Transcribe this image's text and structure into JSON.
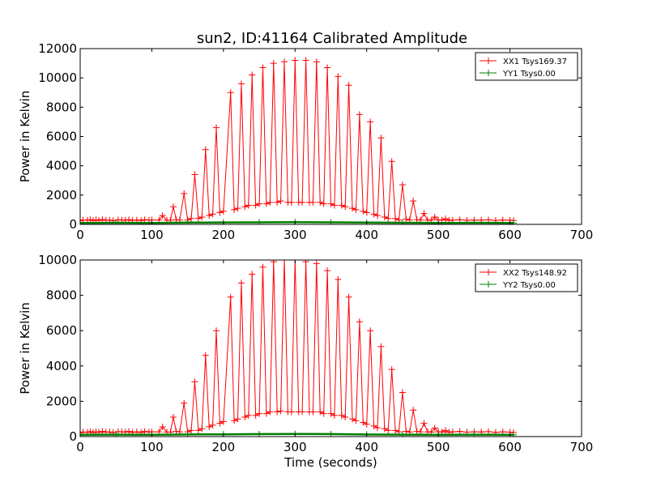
{
  "figure": {
    "title": "sun2, ID:41164 Calibrated Amplitude"
  },
  "chart_data": [
    {
      "type": "line",
      "title": "sun2, ID:41164 Calibrated Amplitude",
      "xlabel": "",
      "ylabel": "Power in Kelvin",
      "xlim": [
        0,
        700
      ],
      "ylim": [
        0,
        12000
      ],
      "xticks": [
        "0",
        "100",
        "200",
        "300",
        "400",
        "500",
        "600",
        "700"
      ],
      "yticks": [
        "0",
        "2000",
        "4000",
        "6000",
        "8000",
        "10000",
        "12000"
      ],
      "grid": false,
      "legend_position": "top-right",
      "series": [
        {
          "name": "XX1 Tsys169.37",
          "color": "#ff0000",
          "marker": "plus",
          "x": [
            0,
            4,
            10,
            14,
            18,
            22,
            26,
            31,
            36,
            41,
            46,
            53,
            58,
            63,
            68,
            73,
            79,
            85,
            90,
            96,
            100,
            110,
            115,
            121,
            126,
            130,
            134,
            139,
            145,
            150,
            155,
            160,
            165,
            170,
            175,
            180,
            185,
            190,
            195,
            200,
            210,
            215,
            220,
            225,
            230,
            235,
            240,
            245,
            250,
            255,
            260,
            265,
            270,
            275,
            280,
            285,
            290,
            295,
            300,
            305,
            310,
            315,
            320,
            325,
            330,
            335,
            340,
            345,
            350,
            355,
            360,
            365,
            370,
            375,
            380,
            385,
            390,
            395,
            400,
            405,
            410,
            415,
            420,
            425,
            430,
            435,
            440,
            445,
            450,
            455,
            460,
            465,
            470,
            475,
            480,
            485,
            490,
            495,
            500,
            505,
            510,
            515,
            520,
            530,
            540,
            550,
            560,
            570,
            580,
            590,
            600,
            605
          ],
          "y": [
            250,
            300,
            280,
            320,
            260,
            310,
            270,
            330,
            280,
            290,
            260,
            310,
            300,
            280,
            320,
            270,
            300,
            260,
            320,
            290,
            300,
            300,
            600,
            290,
            280,
            1200,
            320,
            300,
            2100,
            300,
            400,
            3400,
            400,
            500,
            5100,
            600,
            700,
            6600,
            800,
            900,
            9000,
            1000,
            1100,
            9600,
            1200,
            1300,
            10200,
            1300,
            1400,
            10700,
            1400,
            1500,
            11000,
            1500,
            1600,
            11100,
            1500,
            1500,
            11200,
            1500,
            1500,
            11200,
            1500,
            1500,
            11100,
            1500,
            1400,
            10700,
            1400,
            1300,
            10100,
            1300,
            1200,
            9500,
            1100,
            1000,
            7500,
            900,
            800,
            7000,
            700,
            600,
            5900,
            500,
            400,
            4300,
            400,
            300,
            2700,
            350,
            300,
            1600,
            320,
            300,
            750,
            300,
            280,
            500,
            300,
            290,
            380,
            270,
            300,
            320,
            280,
            300,
            290,
            310,
            270,
            300,
            280,
            260
          ]
        },
        {
          "name": "YY1 Tsys0.00",
          "color": "#008000",
          "marker": "plus",
          "x": [
            0,
            50,
            100,
            150,
            200,
            250,
            300,
            350,
            400,
            450,
            500,
            550,
            605
          ],
          "y": [
            100,
            110,
            100,
            120,
            130,
            140,
            150,
            140,
            120,
            110,
            100,
            110,
            100
          ]
        }
      ]
    },
    {
      "type": "line",
      "title": "",
      "xlabel": "Time (seconds)",
      "ylabel": "Power in Kelvin",
      "xlim": [
        0,
        700
      ],
      "ylim": [
        0,
        10000
      ],
      "xticks": [
        "0",
        "100",
        "200",
        "300",
        "400",
        "500",
        "600",
        "700"
      ],
      "yticks": [
        "0",
        "2000",
        "4000",
        "6000",
        "8000",
        "10000"
      ],
      "grid": false,
      "legend_position": "top-right",
      "series": [
        {
          "name": "XX2 Tsys148.92",
          "color": "#ff0000",
          "marker": "plus",
          "x": [
            0,
            4,
            10,
            14,
            18,
            22,
            26,
            31,
            36,
            41,
            46,
            53,
            58,
            63,
            68,
            73,
            79,
            85,
            90,
            96,
            100,
            110,
            115,
            121,
            126,
            130,
            134,
            139,
            145,
            150,
            155,
            160,
            165,
            170,
            175,
            180,
            185,
            190,
            195,
            200,
            210,
            215,
            220,
            225,
            230,
            235,
            240,
            245,
            250,
            255,
            260,
            265,
            270,
            275,
            280,
            285,
            290,
            295,
            300,
            305,
            310,
            315,
            320,
            325,
            330,
            335,
            340,
            345,
            350,
            355,
            360,
            365,
            370,
            375,
            380,
            385,
            390,
            395,
            400,
            405,
            410,
            415,
            420,
            425,
            430,
            435,
            440,
            445,
            450,
            455,
            460,
            465,
            470,
            475,
            480,
            485,
            490,
            495,
            500,
            505,
            510,
            515,
            520,
            530,
            540,
            550,
            560,
            570,
            580,
            590,
            600,
            605
          ],
          "y": [
            220,
            260,
            240,
            280,
            230,
            270,
            240,
            290,
            250,
            260,
            230,
            280,
            270,
            250,
            290,
            240,
            270,
            230,
            290,
            260,
            270,
            270,
            550,
            260,
            250,
            1100,
            290,
            270,
            1900,
            270,
            350,
            3100,
            350,
            450,
            4600,
            550,
            650,
            6000,
            750,
            850,
            7900,
            900,
            1000,
            8700,
            1100,
            1200,
            9200,
            1200,
            1300,
            9600,
            1300,
            1400,
            9900,
            1400,
            1450,
            10000,
            1400,
            1400,
            10000,
            1400,
            1400,
            9900,
            1400,
            1400,
            9800,
            1400,
            1300,
            9400,
            1300,
            1200,
            8900,
            1200,
            1100,
            7900,
            1000,
            900,
            6500,
            800,
            700,
            6000,
            600,
            500,
            5100,
            450,
            350,
            3800,
            350,
            270,
            2500,
            300,
            260,
            1500,
            290,
            270,
            750,
            270,
            250,
            480,
            270,
            260,
            350,
            240,
            270,
            290,
            250,
            270,
            260,
            280,
            240,
            270,
            250,
            230
          ]
        },
        {
          "name": "YY2 Tsys0.00",
          "color": "#008000",
          "marker": "plus",
          "x": [
            0,
            50,
            100,
            150,
            200,
            250,
            300,
            350,
            400,
            450,
            500,
            550,
            605
          ],
          "y": [
            100,
            110,
            100,
            120,
            130,
            140,
            150,
            140,
            120,
            110,
            100,
            110,
            100
          ]
        }
      ]
    }
  ]
}
